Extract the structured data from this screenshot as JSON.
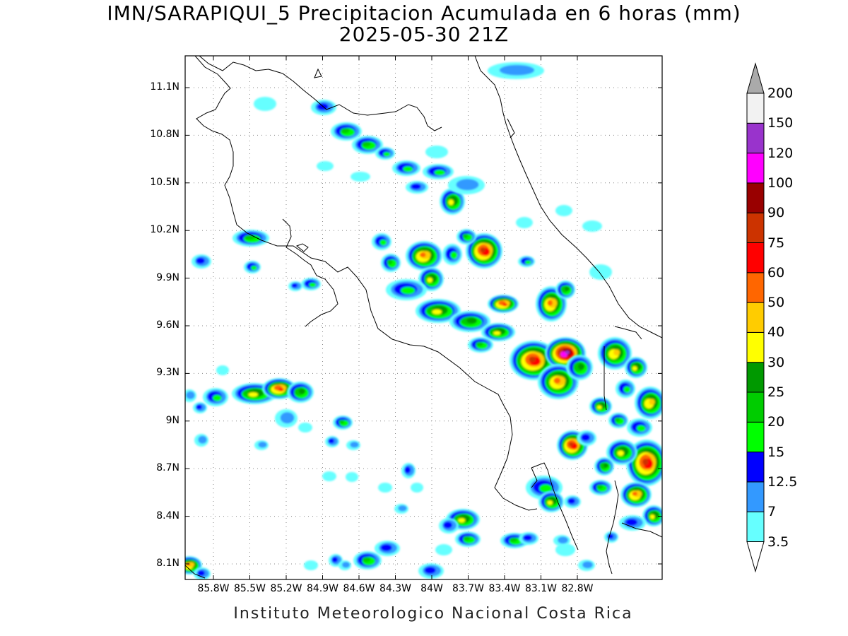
{
  "title": {
    "line1": "IMN/SARAPIQUI_5 Precipitacion Acumulada en 6 horas (mm)",
    "line2": "2025-05-30 21Z"
  },
  "footer": "Instituto Meteorologico Nacional Costa Rica",
  "map": {
    "lat_ticks": [
      "11.1N",
      "10.8N",
      "10.5N",
      "10.2N",
      "9.9N",
      "9.6N",
      "9.3N",
      "9N",
      "8.7N",
      "8.4N",
      "8.1N"
    ],
    "lon_ticks": [
      "85.8W",
      "85.5W",
      "85.2W",
      "84.9W",
      "84.6W",
      "84.3W",
      "84W",
      "83.7W",
      "83.4W",
      "83.1W",
      "82.8W"
    ]
  },
  "colorbar": {
    "levels": [
      "3.5",
      "7",
      "12.5",
      "15",
      "20",
      "25",
      "30",
      "40",
      "50",
      "60",
      "75",
      "90",
      "100",
      "120",
      "150",
      "200"
    ],
    "colors": [
      "#66ffff",
      "#3399ff",
      "#0000ff",
      "#00ff00",
      "#00cc00",
      "#009900",
      "#ffff00",
      "#ffcc00",
      "#ff6600",
      "#ff0000",
      "#cc3300",
      "#990000",
      "#ff00ff",
      "#9933cc",
      "#f2f2f2",
      "#aaaaaa"
    ]
  }
}
